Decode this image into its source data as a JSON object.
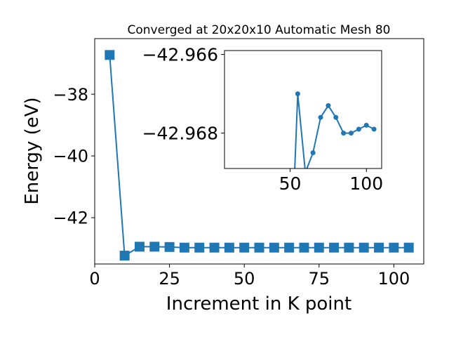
{
  "chart_data": [
    {
      "type": "line",
      "title": "Converged at 20x20x10 Automatic Mesh 80",
      "xlabel": "Increment in K point",
      "ylabel": "Energy (eV)",
      "xlim": [
        0,
        110
      ],
      "ylim": [
        -43.5,
        -36.2
      ],
      "xticks": [
        0,
        25,
        50,
        75,
        100
      ],
      "yticks": [
        -38,
        -40,
        -42
      ],
      "marker": "square",
      "line_color": "#1f77b4",
      "series": [
        {
          "x": [
            5,
            10,
            15,
            20,
            25,
            30,
            35,
            40,
            45,
            50,
            55,
            60,
            65,
            70,
            75,
            80,
            85,
            90,
            95,
            100,
            105
          ],
          "y": [
            -36.73,
            -43.23,
            -42.94,
            -42.94,
            -42.95,
            -42.97,
            -42.97,
            -42.97,
            -42.97,
            -42.97,
            -42.97,
            -42.97,
            -42.97,
            -42.97,
            -42.97,
            -42.97,
            -42.97,
            -42.97,
            -42.97,
            -42.97,
            -42.97
          ]
        }
      ]
    },
    {
      "type": "line",
      "inset": true,
      "xlim": [
        7,
        110
      ],
      "ylim": [
        -42.9689,
        -42.9659
      ],
      "xticks": [
        50,
        100
      ],
      "yticks": [
        -42.968,
        -42.966
      ],
      "marker": "circle",
      "line_color": "#1f77b4",
      "series": [
        {
          "x": [
            50,
            55,
            60,
            65,
            70,
            75,
            80,
            85,
            90,
            95,
            100,
            105
          ],
          "y": [
            -42.9719,
            -42.967,
            -42.969,
            -42.9685,
            -42.9676,
            -42.9673,
            -42.9676,
            -42.968,
            -42.968,
            -42.9679,
            -42.9678,
            -42.9679
          ]
        }
      ]
    }
  ]
}
